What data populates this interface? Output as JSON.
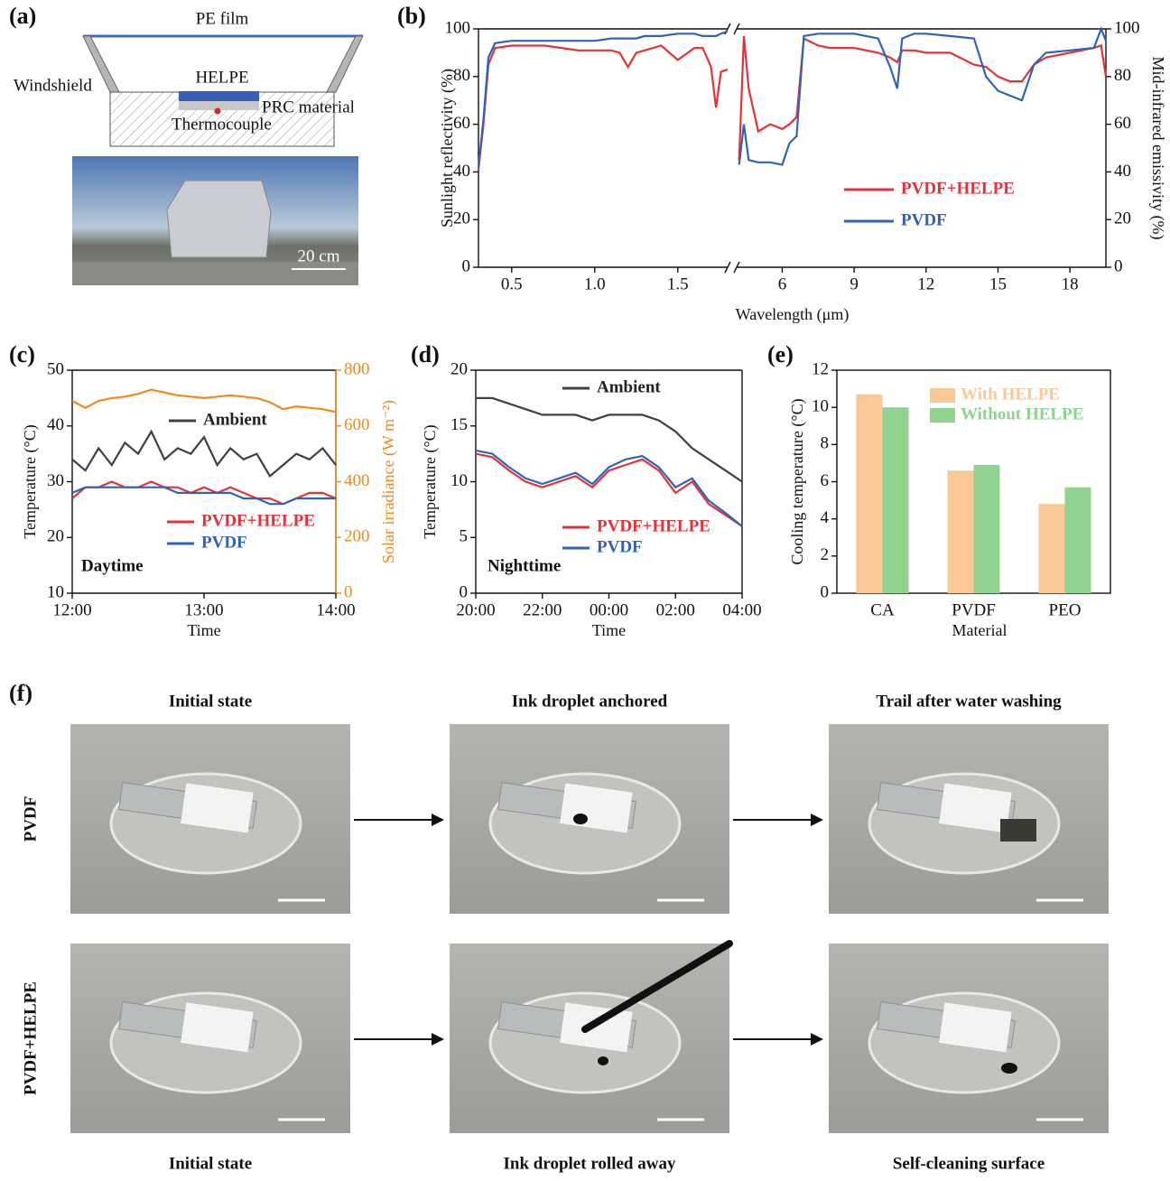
{
  "panel_labels": [
    "(a)",
    "(b)",
    "(c)",
    "(d)",
    "(e)",
    "(f)"
  ],
  "schematic": {
    "pe_film": "PE film",
    "windshield": "Windshield",
    "helpe": "HELPE",
    "prc_material": "PRC material",
    "thermocouple": "Thermocouple",
    "scale_bar": "20 cm"
  },
  "chart_data": [
    {
      "type": "line",
      "xlabel": "Wavelength (μm)",
      "ylabel": "Sunlight reflectivity (%)",
      "y2label": "Mid-infrared emissivity (%)",
      "ylim": [
        0,
        100
      ],
      "yticks": [
        0,
        20,
        40,
        60,
        80,
        100
      ],
      "y2lim": [
        0,
        100
      ],
      "y2ticks": [
        0,
        20,
        40,
        60,
        80,
        100
      ],
      "xlim": [
        0.3,
        1.8
      ],
      "xticks": [
        0.5,
        {
          "value": 1,
          "label": "1.0"
        },
        1.5
      ],
      "x": [
        0.3,
        0.33,
        0.36,
        0.4,
        0.5,
        0.6,
        0.7,
        0.8,
        0.9,
        1.0,
        1.1,
        1.15,
        1.2,
        1.25,
        1.3,
        1.4,
        1.5,
        1.6,
        1.65,
        1.7,
        1.73,
        1.76,
        1.8
      ],
      "x2lim": [
        4.1,
        19.5
      ],
      "x2ticks": [
        6,
        9,
        12,
        15,
        18
      ],
      "x2": [
        4.2,
        4.4,
        4.6,
        5,
        5.5,
        6,
        6.3,
        6.6,
        6.9,
        7.5,
        8,
        9,
        10,
        10.5,
        10.8,
        11,
        11.5,
        12,
        13,
        14,
        14.5,
        15,
        15.5,
        16,
        16.5,
        17,
        18,
        19,
        19.3,
        19.5
      ],
      "series": [
        {
          "name": "PVDF+HELPE",
          "color": "#e53238",
          "values": [
            41,
            60,
            85,
            92,
            93,
            93,
            93,
            92,
            91,
            91,
            91,
            90,
            84,
            90,
            91,
            93,
            87,
            92,
            92,
            84,
            67,
            82,
            83
          ],
          "values2": [
            45,
            97,
            75,
            57,
            60,
            58,
            60,
            63,
            96,
            93,
            92,
            92,
            90,
            88,
            86,
            91,
            91,
            90,
            90,
            85,
            84,
            80,
            78,
            78,
            85,
            88,
            90,
            92,
            93,
            80
          ]
        },
        {
          "name": "PVDF",
          "color": "#2e63b8",
          "values": [
            42,
            62,
            88,
            94,
            95,
            95,
            95,
            95,
            95,
            95,
            96,
            96,
            96,
            96,
            97,
            97,
            98,
            98,
            97,
            97,
            97,
            98,
            99
          ],
          "values2": [
            43,
            60,
            45,
            44,
            44,
            43,
            52,
            55,
            97,
            98,
            98,
            98,
            96,
            84,
            75,
            96,
            98,
            98,
            97,
            96,
            80,
            74,
            72,
            70,
            85,
            90,
            91,
            92,
            100,
            95
          ]
        }
      ]
    },
    {
      "type": "line",
      "xlabel": "Time",
      "ylabel": "Temperature (°C)",
      "y2label": "Solar irradiance (W m⁻²)",
      "y2color": "#f08a1c",
      "annotation": "Daytime",
      "ylim": [
        10,
        50
      ],
      "yticks": [
        10,
        20,
        30,
        40,
        50
      ],
      "y2lim": [
        0,
        800
      ],
      "y2ticks": [
        0,
        200,
        400,
        600,
        800
      ],
      "xlim": [
        12,
        14
      ],
      "xticks": [
        {
          "value": 12,
          "label": "12:00"
        },
        {
          "value": 13,
          "label": "13:00"
        },
        {
          "value": 14,
          "label": "14:00"
        }
      ],
      "x": [
        12,
        12.1,
        12.2,
        12.3,
        12.4,
        12.5,
        12.6,
        12.7,
        12.8,
        12.9,
        13,
        13.1,
        13.2,
        13.3,
        13.4,
        13.5,
        13.6,
        13.7,
        13.8,
        13.9,
        14
      ],
      "series": [
        {
          "color": "#f08a1c",
          "axis": "y2",
          "values": [
            690,
            665,
            690,
            700,
            705,
            715,
            730,
            720,
            710,
            705,
            700,
            705,
            710,
            705,
            700,
            685,
            660,
            670,
            665,
            660,
            650
          ]
        },
        {
          "name": "Ambient",
          "color": "#404040",
          "values": [
            34,
            32,
            36,
            33,
            37,
            35,
            39,
            34,
            36,
            35,
            38,
            33,
            36,
            34,
            35,
            31,
            33,
            35,
            34,
            36,
            33
          ]
        },
        {
          "name": "PVDF+HELPE",
          "color": "#e53238",
          "values": [
            27,
            29,
            29,
            30,
            29,
            29,
            30,
            29,
            29,
            28,
            29,
            28,
            29,
            28,
            27,
            27,
            26,
            27,
            28,
            28,
            27
          ]
        },
        {
          "name": "PVDF",
          "color": "#2e63b8",
          "values": [
            28,
            29,
            29,
            29,
            29,
            29,
            29,
            29,
            28,
            28,
            28,
            28,
            28,
            27,
            27,
            26,
            26,
            27,
            27,
            27,
            27
          ]
        }
      ]
    },
    {
      "type": "line",
      "xlabel": "Time",
      "ylabel": "Temperature (°C)",
      "annotation": "Nighttime",
      "ylim": [
        0,
        20
      ],
      "yticks": [
        0,
        5,
        10,
        15,
        20
      ],
      "xlim": [
        20,
        28
      ],
      "xticks": [
        {
          "value": 20,
          "label": "20:00"
        },
        {
          "value": 22,
          "label": "22:00"
        },
        {
          "value": 24,
          "label": "00:00"
        },
        {
          "value": 26,
          "label": "02:00"
        },
        {
          "value": 28,
          "label": "04:00"
        }
      ],
      "x": [
        20,
        20.5,
        21,
        21.5,
        22,
        22.5,
        23,
        23.5,
        24,
        24.5,
        25,
        25.5,
        26,
        26.5,
        27,
        27.5,
        28
      ],
      "series": [
        {
          "name": "Ambient",
          "color": "#404040",
          "values": [
            17.5,
            17.5,
            17,
            16.5,
            16,
            16,
            16,
            15.5,
            16,
            16,
            16,
            15.5,
            14.5,
            13,
            12,
            11,
            10
          ]
        },
        {
          "name": "PVDF+HELPE",
          "color": "#e53238",
          "values": [
            12.5,
            12.2,
            11,
            10,
            9.5,
            10,
            10.5,
            9.5,
            11,
            11.5,
            12,
            11,
            9,
            10,
            8,
            7,
            6
          ]
        },
        {
          "name": "PVDF",
          "color": "#2e63b8",
          "values": [
            12.8,
            12.5,
            11.3,
            10.3,
            9.8,
            10.3,
            10.8,
            9.8,
            11.3,
            12,
            12.3,
            11.3,
            9.5,
            10.3,
            8.3,
            7.2,
            6
          ]
        }
      ]
    },
    {
      "type": "bar",
      "xlabel": "Material",
      "ylabel": "Cooling temperature (°C)",
      "ylim": [
        0,
        12
      ],
      "yticks": [
        0,
        2,
        4,
        6,
        8,
        10,
        12
      ],
      "categories": [
        "CA",
        "PVDF",
        "PEO"
      ],
      "series": [
        {
          "name": "With HELPE",
          "color": "#f9c896",
          "values": [
            10.7,
            6.6,
            4.8
          ]
        },
        {
          "name": "Without HELPE",
          "color": "#90d28f",
          "values": [
            10,
            6.9,
            5.7
          ]
        }
      ]
    }
  ],
  "photos": {
    "top_titles": [
      "Initial state",
      "Ink droplet anchored",
      "Trail after water washing"
    ],
    "bottom_titles": [
      "Initial state",
      "Ink droplet rolled away",
      "Self-cleaning surface"
    ],
    "row_labels": [
      "PVDF",
      "PVDF+HELPE"
    ]
  }
}
